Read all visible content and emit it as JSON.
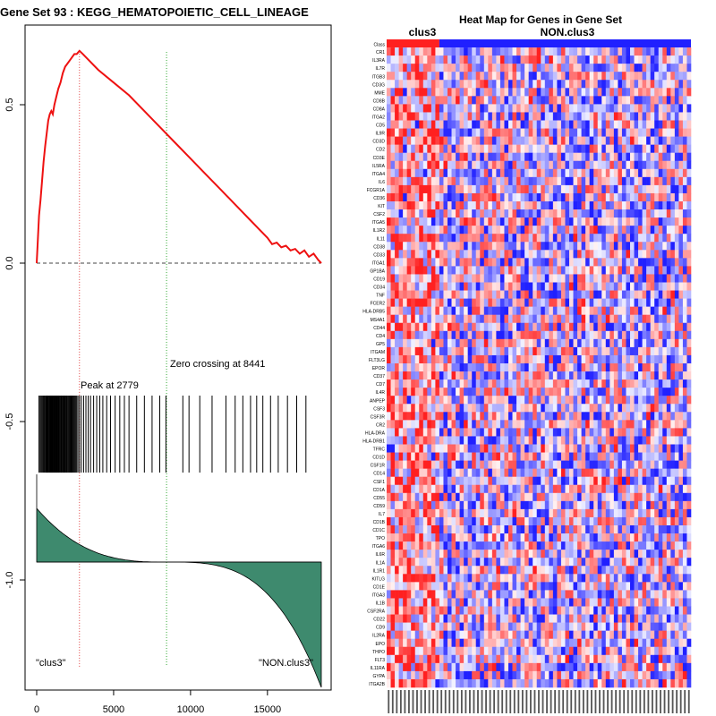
{
  "left_title": "Gene Set  93 : KEGG_HEMATOPOIETIC_CELL_LINEAGE",
  "heatmap_title": "Heat Map for Genes in Gene Set",
  "colors": {
    "es_line": "#ee1111",
    "zero_line": "#444444",
    "peak_line": "#e04040",
    "zero_cross_line": "#33aa33",
    "hit_lines": "#000000",
    "ranked_fill": "#3e8a6e",
    "heat_high": "#ff2020",
    "heat_low": "#2020ff",
    "heat_mid": "#f2eef2"
  },
  "chart_data": [
    {
      "type": "line",
      "name": "enrichment-score",
      "xlim": [
        0,
        18600
      ],
      "ylim": [
        -1.3,
        0.7
      ],
      "xticks": [
        0,
        5000,
        10000,
        15000
      ],
      "xtick_labels": [
        "0",
        "5000",
        "10000",
        "15000"
      ],
      "yticks": [
        0.5,
        0.0,
        -0.5,
        -1.0
      ],
      "ytick_labels": [
        "0.5",
        "0.0",
        "-0.5",
        "-1.0"
      ],
      "curve_x": [
        0,
        80,
        150,
        250,
        350,
        450,
        550,
        650,
        750,
        850,
        950,
        1050,
        1150,
        1250,
        1400,
        1550,
        1700,
        1850,
        2000,
        2150,
        2300,
        2450,
        2600,
        2779,
        3000,
        3400,
        4000,
        5000,
        6000,
        7000,
        8000,
        9000,
        10000,
        11000,
        12000,
        13000,
        14000,
        15000,
        15300,
        15600,
        15900,
        16200,
        16500,
        16800,
        17100,
        17400,
        17700,
        18000,
        18300,
        18500
      ],
      "curve_y": [
        0.0,
        0.08,
        0.15,
        0.2,
        0.26,
        0.32,
        0.37,
        0.41,
        0.45,
        0.47,
        0.48,
        0.47,
        0.5,
        0.52,
        0.55,
        0.57,
        0.6,
        0.62,
        0.63,
        0.64,
        0.65,
        0.66,
        0.66,
        0.67,
        0.66,
        0.64,
        0.61,
        0.57,
        0.53,
        0.48,
        0.43,
        0.38,
        0.33,
        0.28,
        0.23,
        0.18,
        0.13,
        0.08,
        0.06,
        0.065,
        0.05,
        0.055,
        0.04,
        0.045,
        0.03,
        0.04,
        0.02,
        0.03,
        0.01,
        0.0
      ],
      "peak_x": 2779,
      "zero_crossing_x": 8441,
      "hits": [
        150,
        220,
        280,
        340,
        400,
        450,
        500,
        560,
        610,
        660,
        700,
        750,
        800,
        840,
        880,
        920,
        960,
        1000,
        1040,
        1080,
        1120,
        1160,
        1200,
        1240,
        1280,
        1320,
        1360,
        1400,
        1450,
        1500,
        1550,
        1600,
        1650,
        1700,
        1750,
        1800,
        1850,
        1900,
        1950,
        2000,
        2060,
        2120,
        2180,
        2240,
        2300,
        2360,
        2420,
        2480,
        2540,
        2600,
        2680,
        2779,
        2900,
        3050,
        3200,
        3350,
        3500,
        3700,
        3900,
        4100,
        4300,
        4550,
        4800,
        5100,
        5400,
        5700,
        6000,
        6500,
        7000,
        7500,
        8000,
        8400,
        9500,
        9900,
        10600,
        11400,
        12300,
        12900,
        13400,
        13900,
        14300,
        14700,
        15200,
        15700,
        16300,
        16900,
        17500
      ],
      "annotations": {
        "peak": "Peak at 2779",
        "zero_crossing": "Zero crossing at 8441",
        "left_phenotype": "\"clus3\"",
        "right_phenotype": "\"NON.clus3\""
      }
    },
    {
      "type": "heatmap",
      "name": "gene-set-heatmap",
      "title": "Heat Map for Genes in Gene Set",
      "class_row_label": "Class",
      "phenotypes": [
        "clus3",
        "NON.clus3"
      ],
      "n_samples": 75,
      "n_clus3": 13,
      "genes": [
        "CR1",
        "IL3RA",
        "IL7R",
        "ITGB3",
        "CD3G",
        "MME",
        "CD8B",
        "CD8A",
        "ITGA2",
        "CD5",
        "IL9R",
        "CD3D",
        "CD2",
        "CD3E",
        "IL5RA",
        "ITGA4",
        "IL6",
        "FCGR1A",
        "CD36",
        "KIT",
        "CSF2",
        "ITGA5",
        "IL1R2",
        "IL11",
        "CD38",
        "CD33",
        "ITGA1",
        "GP1BA",
        "CD19",
        "CD34",
        "TNF",
        "FCER2",
        "HLA-DRB5",
        "MS4A1",
        "CD44",
        "CD4",
        "GP5",
        "ITGAM",
        "FLT3LG",
        "EPOR",
        "CD37",
        "CD7",
        "IL4R",
        "ANPEP",
        "CSF3",
        "CSF3R",
        "CR2",
        "HLA-DRA",
        "HLA-DRB1",
        "TFRC",
        "CD1D",
        "CSF1R",
        "CD14",
        "CSF1",
        "CD1A",
        "CD55",
        "CD59",
        "IL7",
        "CD1B",
        "CD1C",
        "TPO",
        "ITGA6",
        "IL6R",
        "IL1A",
        "IL1R1",
        "KITLG",
        "CD1E",
        "ITGA3",
        "IL1B",
        "CSF2RA",
        "CD22",
        "CD9",
        "IL2RA",
        "EPO",
        "THPO",
        "FLT3",
        "IL11RA",
        "GYPA",
        "ITGA2B"
      ]
    }
  ]
}
